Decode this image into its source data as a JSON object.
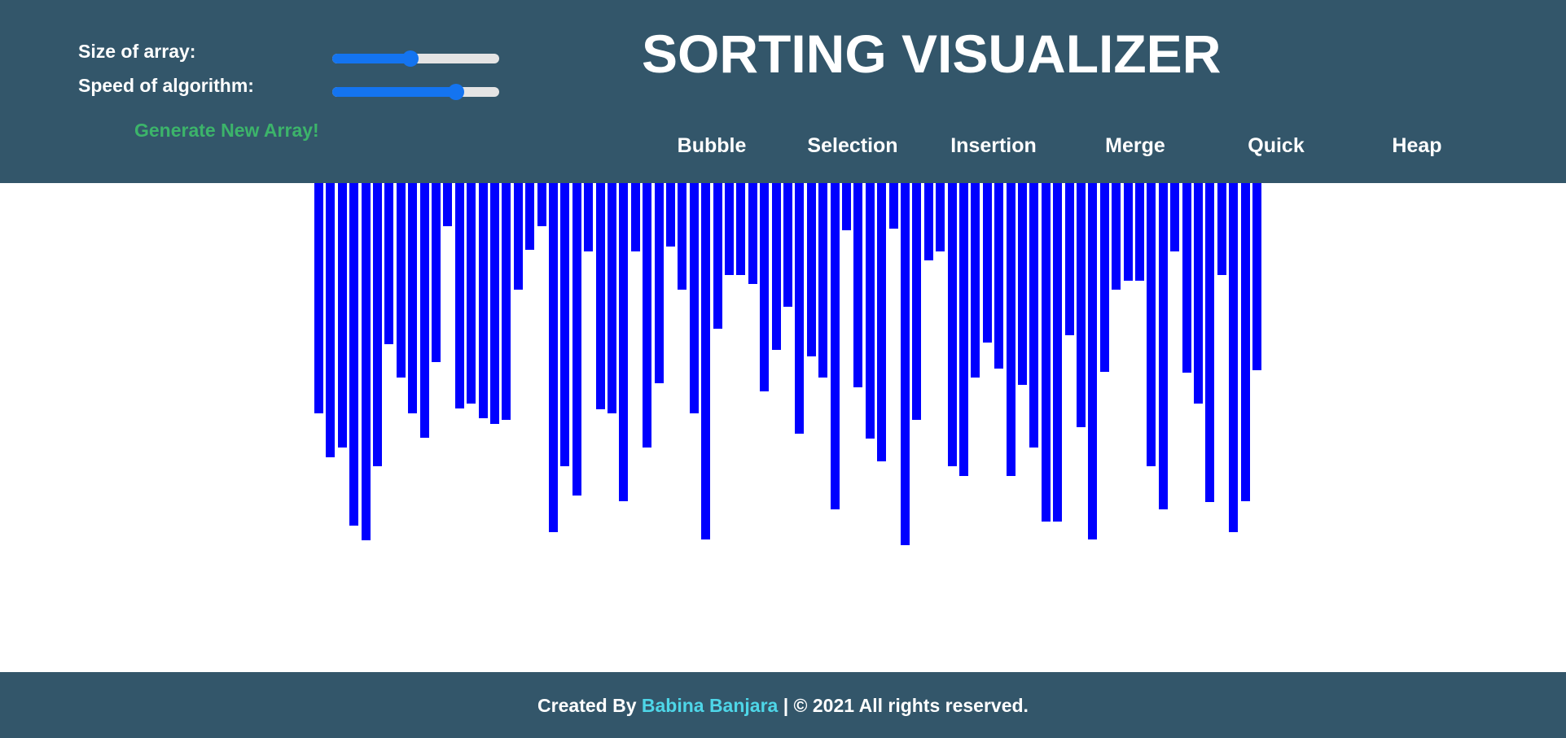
{
  "controls": {
    "size_label": "Size of array:",
    "speed_label": "Speed of algorithm:",
    "size_value_fraction": 0.47,
    "speed_value_fraction": 0.74,
    "generate_label": "Generate New Array!"
  },
  "title": "SORTING VISUALIZER",
  "algorithms": [
    "Bubble",
    "Selection",
    "Insertion",
    "Merge",
    "Quick",
    "Heap"
  ],
  "array_bars": [
    283,
    337,
    325,
    421,
    439,
    348,
    198,
    239,
    283,
    313,
    220,
    53,
    277,
    271,
    289,
    296,
    291,
    131,
    82,
    53,
    429,
    348,
    384,
    84,
    278,
    283,
    391,
    84,
    325,
    246,
    78,
    131,
    283,
    438,
    179,
    113,
    113,
    124,
    256,
    205,
    152,
    308,
    213,
    239,
    401,
    58,
    251,
    314,
    342,
    56,
    445,
    291,
    95,
    84,
    348,
    360,
    239,
    196,
    228,
    360,
    248,
    325,
    416,
    416,
    187,
    300,
    438,
    232,
    131,
    120,
    120,
    348,
    401,
    84,
    233,
    271,
    392,
    113,
    429,
    391,
    230
  ],
  "colors": {
    "header_bg": "#33566a",
    "bar": "#0000ff",
    "accent_blue": "#1474f0",
    "generate_green": "#3cb46a",
    "author_cyan": "#4ed6e8"
  },
  "footer": {
    "prefix": "Created By ",
    "author": "Babina Banjara",
    "suffix": " | © 2021 All rights reserved."
  }
}
